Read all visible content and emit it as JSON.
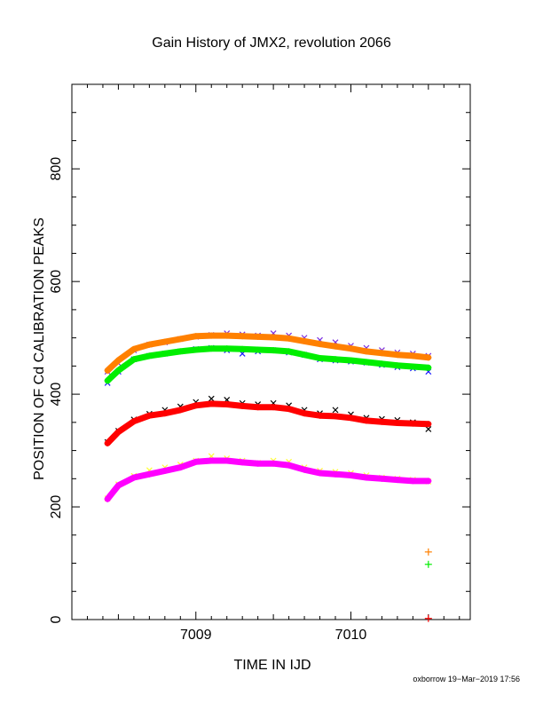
{
  "chart_data": {
    "type": "scatter",
    "title": "Gain History of JMX2, revolution 2066",
    "xlabel": "TIME IN IJD",
    "ylabel": "POSITION OF Cd CALIBRATION PEAKS",
    "xlim": [
      7008.2,
      7010.77
    ],
    "ylim": [
      0,
      950
    ],
    "x_ticks": [
      7009,
      7010
    ],
    "y_ticks": [
      0,
      200,
      400,
      600,
      800
    ],
    "grid": false,
    "footer": "oxborrow 19−Mar−2019 17:56",
    "series": [
      {
        "kind": "raw",
        "color": "#7b2ee0",
        "marker": "x",
        "x": [
          7008.43,
          7008.5,
          7008.6,
          7008.7,
          7008.8,
          7008.9,
          7009.0,
          7009.1,
          7009.2,
          7009.3,
          7009.4,
          7009.5,
          7009.6,
          7009.7,
          7009.8,
          7009.9,
          7010.0,
          7010.1,
          7010.2,
          7010.3,
          7010.4,
          7010.5
        ],
        "y": [
          440,
          455,
          478,
          488,
          492,
          498,
          502,
          505,
          508,
          506,
          504,
          508,
          504,
          500,
          496,
          492,
          486,
          482,
          478,
          474,
          472,
          468
        ]
      },
      {
        "kind": "smooth",
        "color": "#ff8000",
        "marker": "+",
        "x": [
          7008.43,
          7008.5,
          7008.6,
          7008.7,
          7008.8,
          7008.9,
          7009.0,
          7009.1,
          7009.2,
          7009.3,
          7009.4,
          7009.5,
          7009.6,
          7009.7,
          7009.8,
          7009.9,
          7010.0,
          7010.1,
          7010.2,
          7010.3,
          7010.4,
          7010.5
        ],
        "y": [
          442,
          460,
          480,
          488,
          493,
          498,
          503,
          504,
          504,
          503,
          502,
          501,
          499,
          494,
          489,
          485,
          481,
          476,
          473,
          470,
          468,
          465
        ]
      },
      {
        "kind": "raw",
        "color": "#1a1aff",
        "marker": "x",
        "x": [
          7008.43,
          7008.5,
          7008.6,
          7008.7,
          7008.8,
          7008.9,
          7009.0,
          7009.1,
          7009.2,
          7009.3,
          7009.4,
          7009.5,
          7009.6,
          7009.7,
          7009.8,
          7009.9,
          7010.0,
          7010.1,
          7010.2,
          7010.3,
          7010.4,
          7010.5
        ],
        "y": [
          420,
          440,
          462,
          468,
          472,
          476,
          480,
          482,
          478,
          472,
          476,
          478,
          474,
          470,
          462,
          460,
          458,
          456,
          452,
          448,
          446,
          440
        ]
      },
      {
        "kind": "smooth",
        "color": "#00ee00",
        "marker": "+",
        "x": [
          7008.43,
          7008.5,
          7008.6,
          7008.7,
          7008.8,
          7008.9,
          7009.0,
          7009.1,
          7009.2,
          7009.3,
          7009.4,
          7009.5,
          7009.6,
          7009.7,
          7009.8,
          7009.9,
          7010.0,
          7010.1,
          7010.2,
          7010.3,
          7010.4,
          7010.5
        ],
        "y": [
          424,
          442,
          462,
          468,
          472,
          476,
          479,
          481,
          481,
          480,
          479,
          478,
          476,
          470,
          464,
          462,
          460,
          457,
          454,
          451,
          449,
          447
        ]
      },
      {
        "kind": "raw",
        "color": "#000000",
        "marker": "x",
        "x": [
          7008.43,
          7008.5,
          7008.6,
          7008.7,
          7008.8,
          7008.9,
          7009.0,
          7009.1,
          7009.2,
          7009.3,
          7009.4,
          7009.5,
          7009.6,
          7009.7,
          7009.8,
          7009.9,
          7010.0,
          7010.1,
          7010.2,
          7010.3,
          7010.4,
          7010.5
        ],
        "y": [
          315,
          335,
          355,
          365,
          372,
          378,
          386,
          392,
          390,
          384,
          382,
          384,
          380,
          372,
          366,
          372,
          364,
          358,
          356,
          354,
          350,
          338
        ]
      },
      {
        "kind": "smooth",
        "color": "#ff0000",
        "marker": "+",
        "x": [
          7008.43,
          7008.5,
          7008.6,
          7008.7,
          7008.8,
          7008.9,
          7009.0,
          7009.1,
          7009.2,
          7009.3,
          7009.4,
          7009.5,
          7009.6,
          7009.7,
          7009.8,
          7009.9,
          7010.0,
          7010.1,
          7010.2,
          7010.3,
          7010.4,
          7010.5
        ],
        "y": [
          313,
          333,
          352,
          362,
          366,
          372,
          380,
          383,
          382,
          379,
          377,
          377,
          374,
          366,
          362,
          361,
          358,
          353,
          351,
          349,
          348,
          347
        ]
      },
      {
        "kind": "raw",
        "color": "#ffff33",
        "marker": "x",
        "x": [
          7008.43,
          7008.5,
          7008.6,
          7008.7,
          7008.8,
          7008.9,
          7009.0,
          7009.1,
          7009.2,
          7009.3,
          7009.4,
          7009.5,
          7009.6,
          7009.7,
          7009.8,
          7009.9,
          7010.0,
          7010.1,
          7010.2,
          7010.3,
          7010.4,
          7010.5
        ],
        "y": [
          215,
          240,
          255,
          265,
          270,
          275,
          282,
          290,
          286,
          282,
          278,
          282,
          280,
          270,
          264,
          262,
          260,
          256,
          252,
          250,
          248,
          245
        ]
      },
      {
        "kind": "smooth",
        "color": "#ff00ff",
        "marker": "+",
        "x": [
          7008.43,
          7008.5,
          7008.6,
          7008.7,
          7008.8,
          7008.9,
          7009.0,
          7009.1,
          7009.2,
          7009.3,
          7009.4,
          7009.5,
          7009.6,
          7009.7,
          7009.8,
          7009.9,
          7010.0,
          7010.1,
          7010.2,
          7010.3,
          7010.4,
          7010.5
        ],
        "y": [
          214,
          238,
          252,
          258,
          264,
          270,
          280,
          282,
          282,
          279,
          277,
          277,
          274,
          266,
          260,
          258,
          256,
          252,
          250,
          248,
          246,
          246
        ]
      },
      {
        "kind": "outlier",
        "color": "#ff8000",
        "marker": "+",
        "x": [
          7010.5
        ],
        "y": [
          120
        ]
      },
      {
        "kind": "outlier",
        "color": "#00ee00",
        "marker": "+",
        "x": [
          7010.5
        ],
        "y": [
          98
        ]
      },
      {
        "kind": "outlier",
        "color": "#ff0000",
        "marker": "+",
        "x": [
          7010.5
        ],
        "y": [
          2
        ]
      }
    ]
  }
}
